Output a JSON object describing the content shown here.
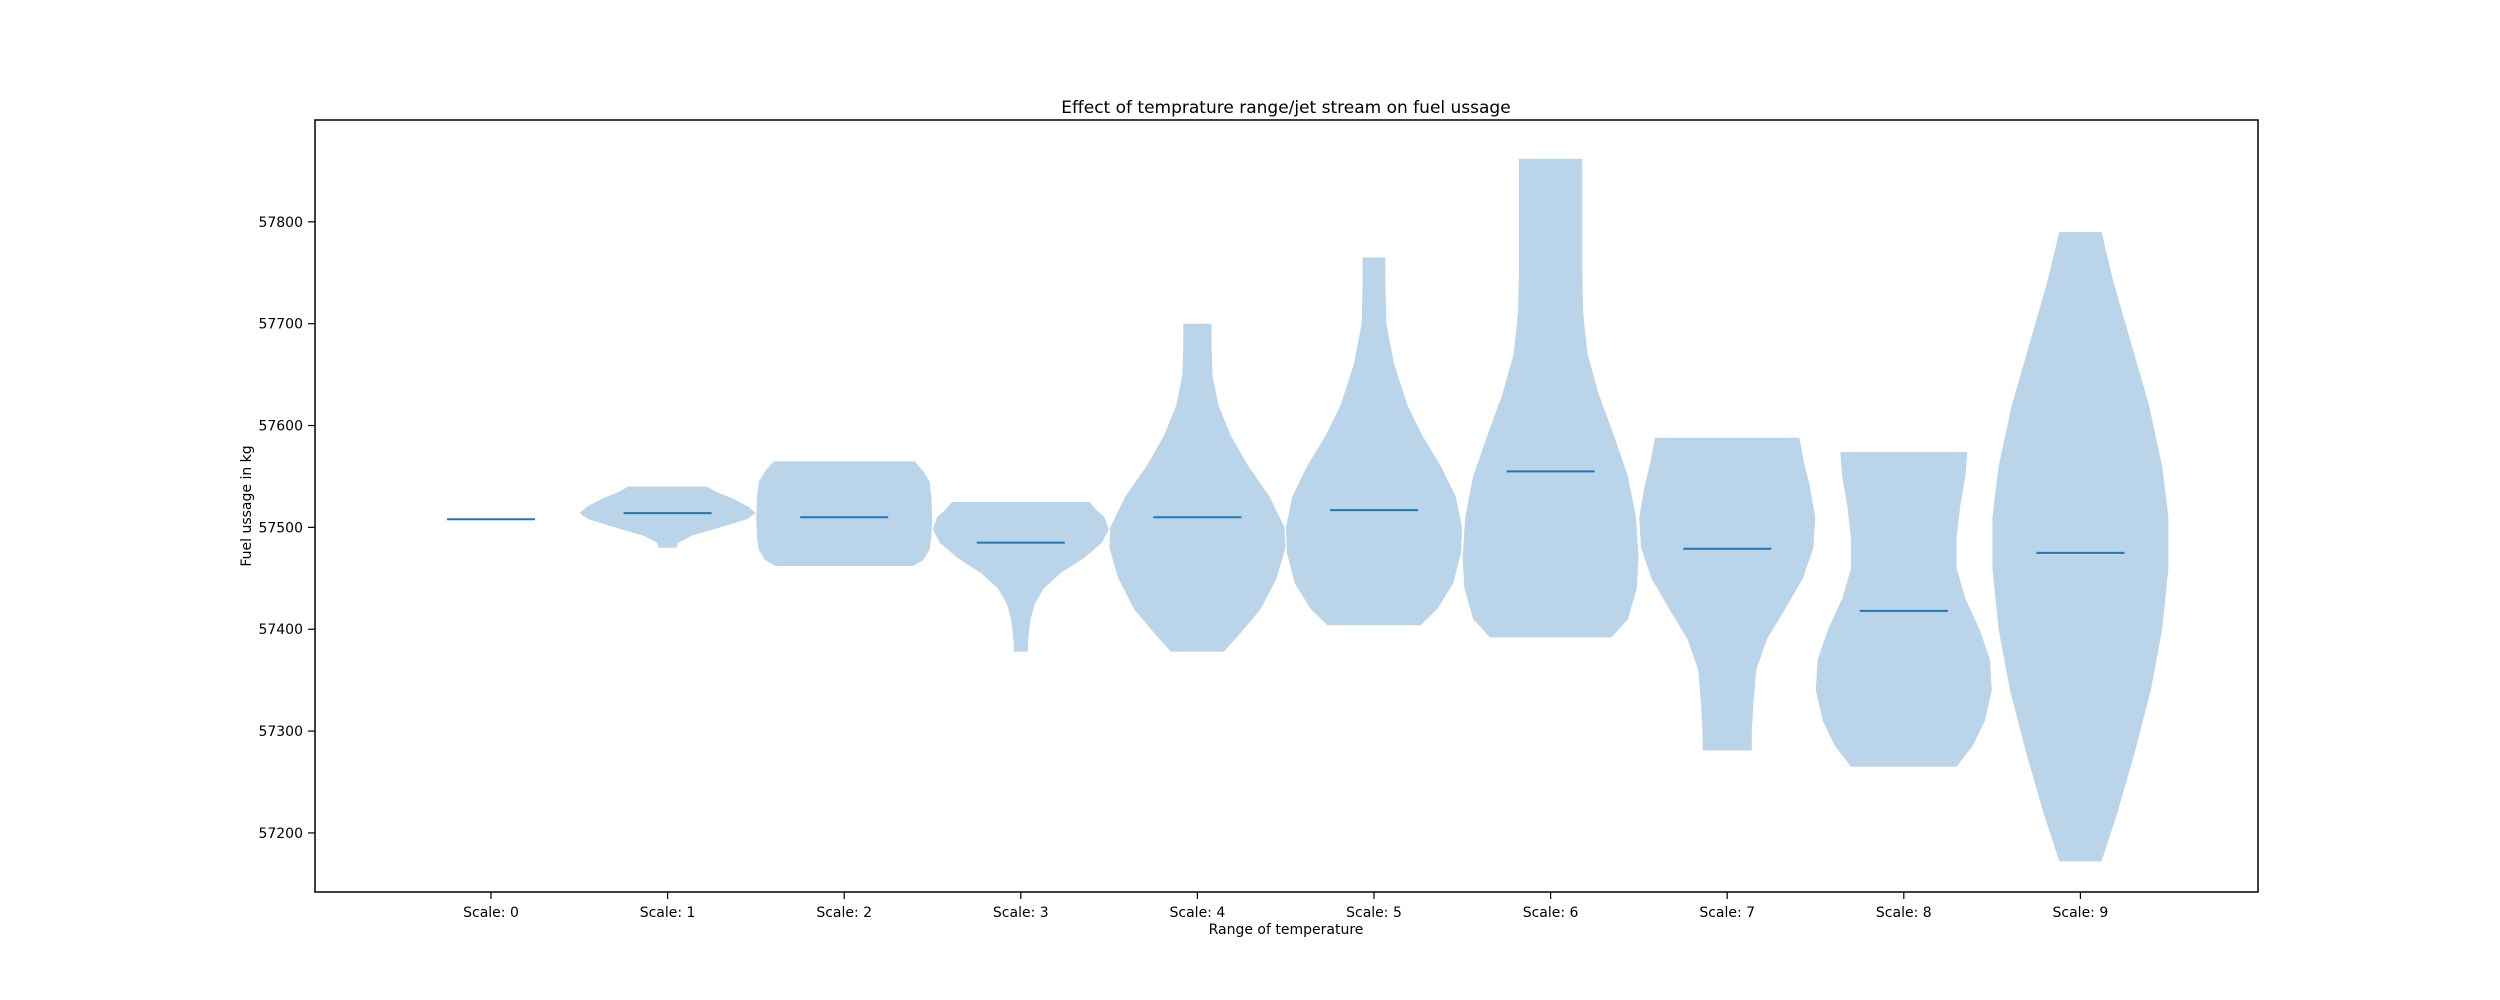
{
  "chart_data": {
    "type": "violin",
    "title": "Effect of temprature range/jet stream on fuel ussage",
    "xlabel": "Range of temperature",
    "ylabel": "Fuel ussage in kg",
    "ylim": [
      57142,
      57900
    ],
    "yticks": [
      57200,
      57300,
      57400,
      57500,
      57600,
      57700,
      57800
    ],
    "grid": false,
    "colors": {
      "fill": "#a6c8e3",
      "median": "#1f77b4"
    },
    "categories": [
      "Scale: 0",
      "Scale: 1",
      "Scale: 2",
      "Scale: 3",
      "Scale: 4",
      "Scale: 5",
      "Scale: 6",
      "Scale: 7",
      "Scale: 8",
      "Scale: 9"
    ],
    "violins": [
      {
        "category": "Scale: 0",
        "min": 57508,
        "max": 57508,
        "median": 57508,
        "profile": [
          [
            57508,
            0.5
          ]
        ]
      },
      {
        "category": "Scale: 1",
        "min": 57480,
        "max": 57540,
        "median": 57514,
        "profile": [
          [
            57480,
            0.1
          ],
          [
            57485,
            0.12
          ],
          [
            57492,
            0.28
          ],
          [
            57500,
            0.6
          ],
          [
            57508,
            0.9
          ],
          [
            57514,
            1.0
          ],
          [
            57520,
            0.92
          ],
          [
            57528,
            0.75
          ],
          [
            57535,
            0.55
          ],
          [
            57540,
            0.45
          ]
        ]
      },
      {
        "category": "Scale: 2",
        "min": 57462,
        "max": 57565,
        "median": 57510,
        "profile": [
          [
            57462,
            0.78
          ],
          [
            57468,
            0.9
          ],
          [
            57478,
            0.97
          ],
          [
            57490,
            0.99
          ],
          [
            57510,
            1.0
          ],
          [
            57530,
            0.99
          ],
          [
            57545,
            0.97
          ],
          [
            57555,
            0.9
          ],
          [
            57565,
            0.8
          ]
        ]
      },
      {
        "category": "Scale: 3",
        "min": 57378,
        "max": 57525,
        "median": 57485,
        "profile": [
          [
            57378,
            0.08
          ],
          [
            57385,
            0.08
          ],
          [
            57395,
            0.09
          ],
          [
            57410,
            0.11
          ],
          [
            57425,
            0.16
          ],
          [
            57440,
            0.26
          ],
          [
            57455,
            0.45
          ],
          [
            57470,
            0.72
          ],
          [
            57485,
            0.92
          ],
          [
            57498,
            1.0
          ],
          [
            57510,
            0.95
          ],
          [
            57518,
            0.85
          ],
          [
            57525,
            0.78
          ]
        ]
      },
      {
        "category": "Scale: 4",
        "min": 57378,
        "max": 57700,
        "median": 57510,
        "profile": [
          [
            57378,
            0.3
          ],
          [
            57395,
            0.48
          ],
          [
            57420,
            0.72
          ],
          [
            57450,
            0.9
          ],
          [
            57480,
            1.0
          ],
          [
            57500,
            0.99
          ],
          [
            57530,
            0.82
          ],
          [
            57560,
            0.58
          ],
          [
            57590,
            0.38
          ],
          [
            57620,
            0.24
          ],
          [
            57650,
            0.17
          ],
          [
            57680,
            0.16
          ],
          [
            57700,
            0.16
          ]
        ]
      },
      {
        "category": "Scale: 5",
        "min": 57404,
        "max": 57765,
        "median": 57517,
        "profile": [
          [
            57404,
            0.53
          ],
          [
            57420,
            0.72
          ],
          [
            57445,
            0.9
          ],
          [
            57475,
            0.99
          ],
          [
            57500,
            1.0
          ],
          [
            57530,
            0.93
          ],
          [
            57560,
            0.76
          ],
          [
            57590,
            0.55
          ],
          [
            57620,
            0.38
          ],
          [
            57660,
            0.23
          ],
          [
            57700,
            0.14
          ],
          [
            57740,
            0.13
          ],
          [
            57765,
            0.13
          ]
        ]
      },
      {
        "category": "Scale: 6",
        "min": 57392,
        "max": 57862,
        "median": 57555,
        "profile": [
          [
            57392,
            0.69
          ],
          [
            57410,
            0.88
          ],
          [
            57440,
            0.98
          ],
          [
            57470,
            1.0
          ],
          [
            57510,
            0.97
          ],
          [
            57550,
            0.88
          ],
          [
            57590,
            0.72
          ],
          [
            57630,
            0.55
          ],
          [
            57670,
            0.42
          ],
          [
            57710,
            0.37
          ],
          [
            57750,
            0.36
          ],
          [
            57800,
            0.36
          ],
          [
            57862,
            0.36
          ]
        ]
      },
      {
        "category": "Scale: 7",
        "min": 57281,
        "max": 57588,
        "median": 57479,
        "profile": [
          [
            57281,
            0.28
          ],
          [
            57300,
            0.28
          ],
          [
            57330,
            0.3
          ],
          [
            57360,
            0.33
          ],
          [
            57390,
            0.45
          ],
          [
            57420,
            0.66
          ],
          [
            57450,
            0.86
          ],
          [
            57480,
            0.98
          ],
          [
            57510,
            1.0
          ],
          [
            57540,
            0.94
          ],
          [
            57565,
            0.87
          ],
          [
            57588,
            0.82
          ]
        ]
      },
      {
        "category": "Scale: 8",
        "min": 57265,
        "max": 57574,
        "median": 57418,
        "profile": [
          [
            57265,
            0.6
          ],
          [
            57285,
            0.78
          ],
          [
            57310,
            0.92
          ],
          [
            57340,
            1.0
          ],
          [
            57370,
            0.98
          ],
          [
            57400,
            0.86
          ],
          [
            57430,
            0.7
          ],
          [
            57460,
            0.6
          ],
          [
            57490,
            0.6
          ],
          [
            57520,
            0.64
          ],
          [
            57550,
            0.7
          ],
          [
            57574,
            0.72
          ]
        ]
      },
      {
        "category": "Scale: 9",
        "min": 57172,
        "max": 57790,
        "median": 57475,
        "profile": [
          [
            57172,
            0.24
          ],
          [
            57220,
            0.42
          ],
          [
            57280,
            0.62
          ],
          [
            57340,
            0.8
          ],
          [
            57400,
            0.93
          ],
          [
            57460,
            1.0
          ],
          [
            57510,
            1.0
          ],
          [
            57560,
            0.93
          ],
          [
            57620,
            0.78
          ],
          [
            57680,
            0.58
          ],
          [
            57740,
            0.38
          ],
          [
            57790,
            0.24
          ]
        ]
      }
    ]
  }
}
